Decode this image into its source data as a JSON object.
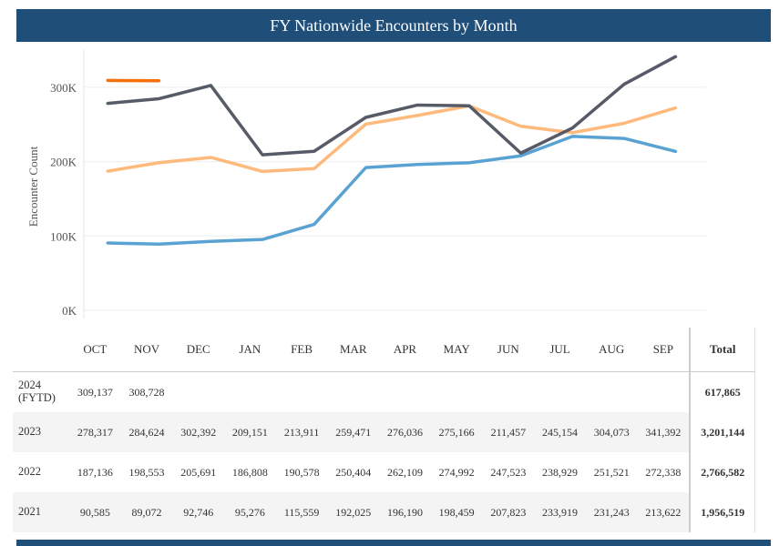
{
  "title": "FY Nationwide Encounters by Month",
  "chart_data": {
    "type": "line",
    "title": "FY Nationwide Encounters by Month",
    "ylabel": "Encounter Count",
    "xlabel": "",
    "categories": [
      "OCT",
      "NOV",
      "DEC",
      "JAN",
      "FEB",
      "MAR",
      "APR",
      "MAY",
      "JUN",
      "JUL",
      "AUG",
      "SEP"
    ],
    "ylim": [
      0,
      350000
    ],
    "yticks": [
      0,
      100000,
      200000,
      300000
    ],
    "ytick_labels": [
      "0K",
      "100K",
      "200K",
      "300K"
    ],
    "series": [
      {
        "name": "2024 (FYTD)",
        "color": "#f5700a",
        "values": [
          309137,
          308728,
          null,
          null,
          null,
          null,
          null,
          null,
          null,
          null,
          null,
          null
        ],
        "total": "617,865"
      },
      {
        "name": "2023",
        "color": "#565b67",
        "values": [
          278317,
          284624,
          302392,
          209151,
          213911,
          259471,
          276036,
          275166,
          211457,
          245154,
          304073,
          341392
        ],
        "total": "3,201,144"
      },
      {
        "name": "2022",
        "color": "#fdba7c",
        "values": [
          187136,
          198553,
          205691,
          186808,
          190578,
          250404,
          262109,
          274992,
          247523,
          238929,
          251521,
          272338
        ],
        "total": "2,766,582"
      },
      {
        "name": "2021",
        "color": "#5aa2d2",
        "values": [
          90585,
          89072,
          92746,
          95276,
          115559,
          192025,
          196190,
          198459,
          207823,
          233919,
          231243,
          213622
        ],
        "total": "1,956,519"
      }
    ]
  },
  "table": {
    "total_header": "Total",
    "row_labels": [
      "2024\n(FYTD)",
      "2023",
      "2022",
      "2021"
    ]
  }
}
